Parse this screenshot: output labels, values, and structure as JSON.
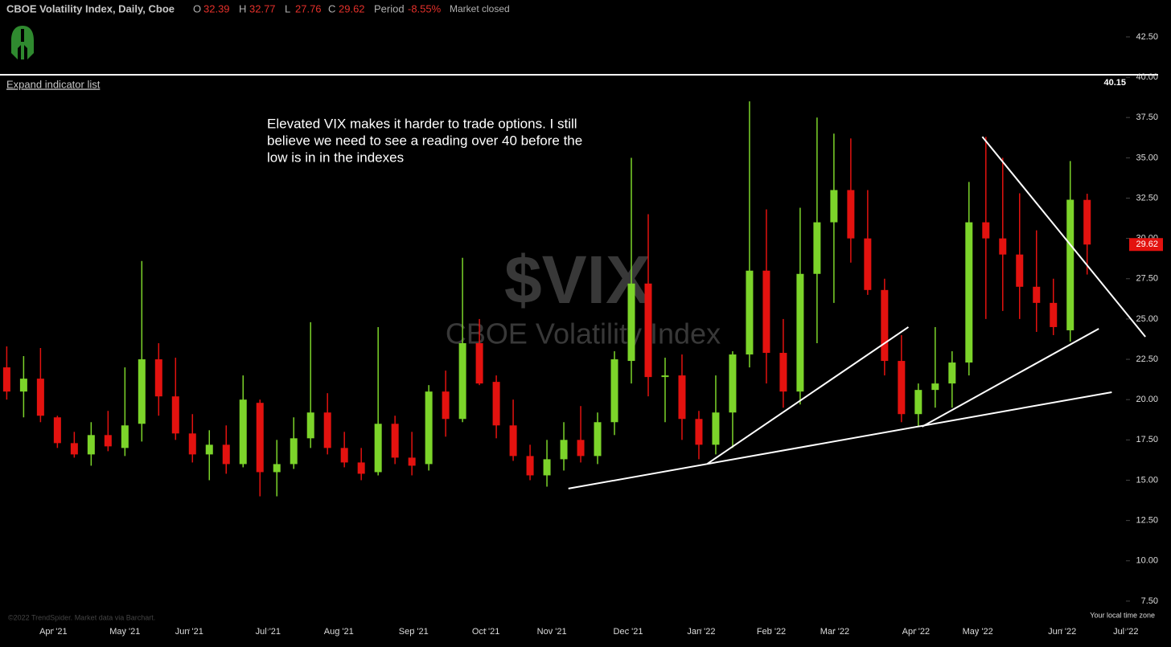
{
  "header": {
    "symbol": "CBOE Volatility Index, Daily, Cboe",
    "quote": [
      {
        "key": "O",
        "value": "32.39"
      },
      {
        "key": "H",
        "value": "32.77"
      },
      {
        "key": "L",
        "value": "27.76"
      },
      {
        "key": "C",
        "value": "29.62"
      },
      {
        "key": "Period",
        "value": "-8.55%"
      }
    ],
    "status": "Market closed",
    "indicator_toggle": "Expand indicator list"
  },
  "chart_data": {
    "type": "candlestick",
    "watermark": "$VIX",
    "watermark_subtitle": "CBOE Volatility Index",
    "annotation": [
      "Elevated VIX makes it harder to trade options. I still",
      "believe we need to see a reading over 40 before the",
      "low is in in the indexes"
    ],
    "up_color": "#7cd42a",
    "down_color": "#e3120f",
    "open": [
      22,
      20.5,
      21.3,
      18.9,
      17.3,
      16.6,
      17.8,
      17,
      18.5,
      22.5,
      20.2,
      17.9,
      16.6,
      17.2,
      16,
      19.8,
      15.5,
      16,
      17.6,
      19.2,
      17,
      16.1,
      15.5,
      18.5,
      16.4,
      16,
      20.5,
      18.8,
      23.5,
      21.1,
      18.4,
      16.5,
      15.3,
      16.3,
      17.5,
      16.5,
      18.6,
      22.4,
      27.2,
      21.4,
      21.5,
      18.8,
      17.2,
      19.2,
      22.8,
      28,
      22.9,
      20.5,
      27.8,
      31,
      33,
      30,
      26.8,
      22.4,
      19.1,
      20.6,
      21,
      22.3,
      31,
      30,
      29,
      27,
      26,
      24.3,
      32.39
    ],
    "high": [
      23.3,
      22.7,
      23.2,
      19,
      18,
      18.6,
      19.3,
      22,
      28.6,
      23.5,
      22.6,
      19.1,
      18.1,
      18.4,
      21.5,
      20,
      17.5,
      18.9,
      24.8,
      20.4,
      18,
      17,
      24.5,
      19,
      18,
      20.9,
      21.8,
      28.8,
      25,
      21.5,
      20,
      17.2,
      17.5,
      18.6,
      19.6,
      19.2,
      23,
      35,
      31.5,
      22.6,
      22.8,
      19.3,
      21.5,
      23,
      38.5,
      31.8,
      25,
      31.9,
      37.5,
      36.5,
      36.2,
      33,
      27.5,
      24,
      21,
      24.5,
      23,
      33.5,
      36.3,
      35,
      32.8,
      30.5,
      27.5,
      34.8,
      32.77
    ],
    "low": [
      20,
      18.9,
      18.6,
      17,
      16.4,
      15.9,
      16.8,
      16.5,
      17.4,
      19,
      17.5,
      16.1,
      15,
      15.4,
      15.8,
      14,
      14,
      15.7,
      17,
      16.6,
      15.8,
      15,
      15.3,
      16,
      15.3,
      15.6,
      17.7,
      18.6,
      20.9,
      17.6,
      16.2,
      15,
      14.6,
      15.6,
      16.1,
      16,
      17.8,
      21,
      20.2,
      18.6,
      17.5,
      16.3,
      16.6,
      17,
      22,
      21,
      19.5,
      19.7,
      23.5,
      26,
      28.5,
      26.5,
      21.5,
      18.6,
      18.3,
      19.5,
      19.5,
      21.5,
      25,
      25.5,
      25,
      24.2,
      24,
      23.6,
      27.76
    ],
    "close": [
      20.5,
      21.3,
      19,
      17.3,
      16.6,
      17.8,
      17.1,
      18.4,
      22.5,
      20.2,
      17.9,
      16.6,
      17.2,
      16,
      20,
      15.5,
      16,
      17.6,
      19.2,
      17,
      16.1,
      15.4,
      18.5,
      16.4,
      15.9,
      20.5,
      18.8,
      23.5,
      21,
      18.4,
      16.5,
      15.3,
      16.3,
      17.5,
      16.5,
      18.6,
      22.5,
      27.2,
      21.4,
      21.5,
      18.8,
      17.2,
      19.2,
      22.8,
      28,
      22.9,
      20.5,
      27.8,
      31,
      33,
      30,
      26.8,
      22.4,
      19.1,
      20.6,
      21,
      22.3,
      31,
      30,
      29,
      27,
      26,
      24.5,
      32.4,
      29.62
    ],
    "xlim": [
      -0.4,
      66.3
    ],
    "xticks": [
      {
        "value": 2.76,
        "label": "Apr '21"
      },
      {
        "value": 7.0,
        "label": "May '21"
      },
      {
        "value": 10.81,
        "label": "Jun '21"
      },
      {
        "value": 15.48,
        "label": "Jul '21"
      },
      {
        "value": 19.67,
        "label": "Aug '21"
      },
      {
        "value": 24.1,
        "label": "Sep '21"
      },
      {
        "value": 28.38,
        "label": "Oct '21"
      },
      {
        "value": 32.29,
        "label": "Nov '21"
      },
      {
        "value": 36.81,
        "label": "Dec '21"
      },
      {
        "value": 41.14,
        "label": "Jan '22"
      },
      {
        "value": 45.29,
        "label": "Feb '22"
      },
      {
        "value": 49.05,
        "label": "Mar '22"
      },
      {
        "value": 53.86,
        "label": "Apr '22"
      },
      {
        "value": 57.52,
        "label": "May '22"
      },
      {
        "value": 62.52,
        "label": "Jun '22"
      },
      {
        "value": 66.29,
        "label": "Jul '22"
      }
    ],
    "ylim": [
      5.65,
      44.79
    ],
    "yticks": [
      {
        "value": 7.5,
        "label": "7.50"
      },
      {
        "value": 10,
        "label": "10.00"
      },
      {
        "value": 12.5,
        "label": "12.50"
      },
      {
        "value": 15,
        "label": "15.00"
      },
      {
        "value": 17.5,
        "label": "17.50"
      },
      {
        "value": 20,
        "label": "20.00"
      },
      {
        "value": 22.5,
        "label": "22.50"
      },
      {
        "value": 25,
        "label": "25.00"
      },
      {
        "value": 27.5,
        "label": "27.50"
      },
      {
        "value": 30,
        "label": "30.00"
      },
      {
        "value": 32.5,
        "label": "32.50"
      },
      {
        "value": 35,
        "label": "35.00"
      },
      {
        "value": 37.5,
        "label": "37.50"
      },
      {
        "value": 40,
        "label": "40.00"
      },
      {
        "value": 42.5,
        "label": "42.50"
      }
    ],
    "hline": 40.15,
    "trendlines": [
      {
        "x": [
          33.27,
          65.46
        ],
        "y": [
          14.48,
          20.46
        ]
      },
      {
        "x": [
          41.5,
          53.41
        ],
        "y": [
          16.02,
          24.5
        ]
      },
      {
        "x": [
          54.22,
          64.69
        ],
        "y": [
          18.32,
          24.4
        ]
      },
      {
        "x": [
          57.79,
          67.45
        ],
        "y": [
          36.31,
          23.9
        ]
      }
    ]
  },
  "footer": {
    "copyright": "©2022 TrendSpider. Market data via Barchart.",
    "timezone": "Your local time zone"
  }
}
